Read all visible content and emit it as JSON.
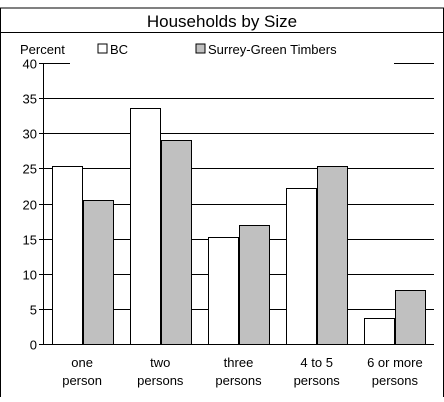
{
  "chart_data": {
    "type": "bar",
    "title": "Households by Size",
    "ylabel": "Percent",
    "xlabel": "",
    "ylim": [
      0,
      40
    ],
    "yticks": [
      0,
      5,
      10,
      15,
      20,
      25,
      30,
      35,
      40
    ],
    "grid": true,
    "legend_position": "top",
    "categories": [
      [
        "one",
        "person"
      ],
      [
        "two",
        "persons"
      ],
      [
        "three",
        "persons"
      ],
      [
        "4 to 5",
        "persons"
      ],
      [
        "6 or more",
        "persons"
      ]
    ],
    "series": [
      {
        "name": "BC",
        "color": "#ffffff",
        "values": [
          25.3,
          33.6,
          15.2,
          22.2,
          3.7
        ]
      },
      {
        "name": "Surrey-Green Timbers",
        "color": "#c0c0c0",
        "values": [
          20.5,
          29.0,
          16.9,
          25.4,
          7.7
        ]
      }
    ]
  }
}
